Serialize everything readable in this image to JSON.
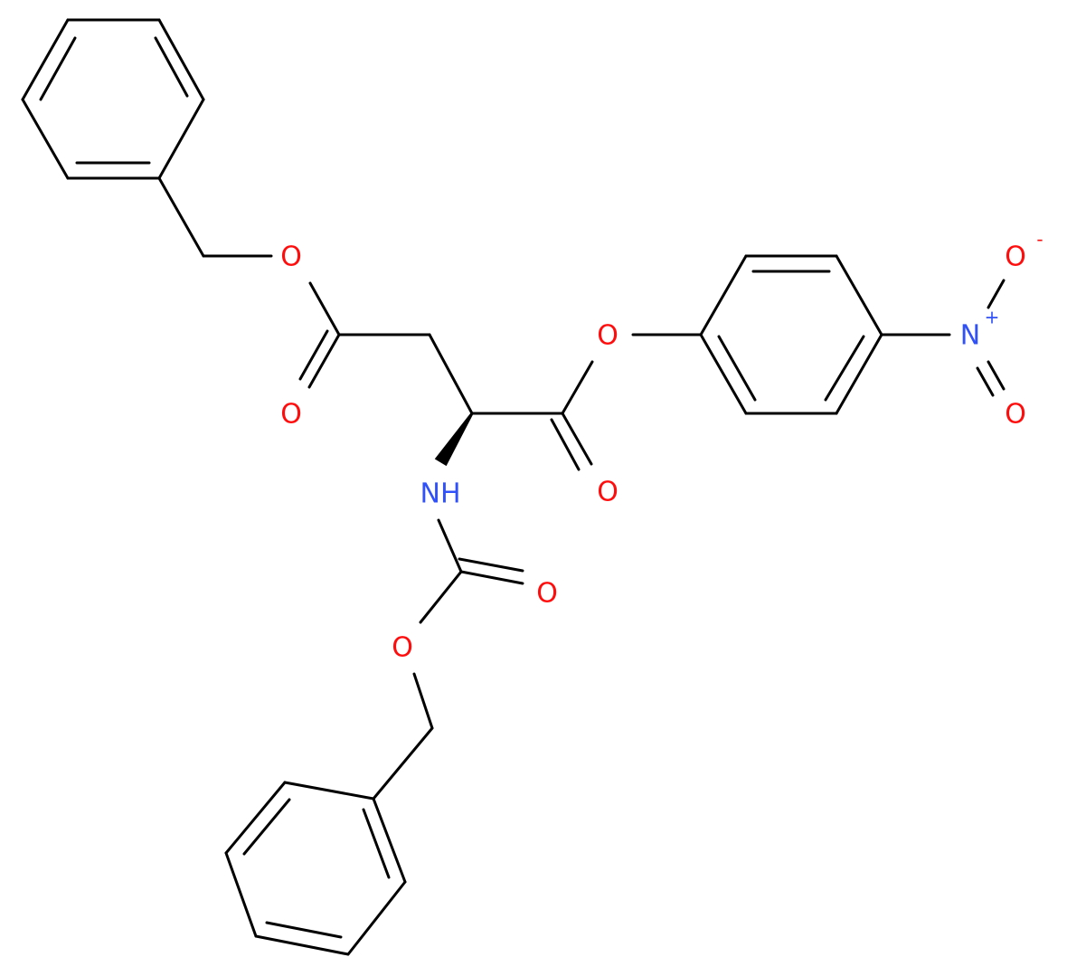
{
  "atoms": [
    {
      "label": "O"
    },
    {
      "label": "O"
    },
    {
      "label": "O"
    },
    {
      "label": "O"
    },
    {
      "label": "NH"
    },
    {
      "label": "O"
    },
    {
      "label": "O"
    },
    {
      "label": "N",
      "charge": "+"
    },
    {
      "label": "O",
      "charge": "-"
    },
    {
      "label": "O"
    }
  ]
}
